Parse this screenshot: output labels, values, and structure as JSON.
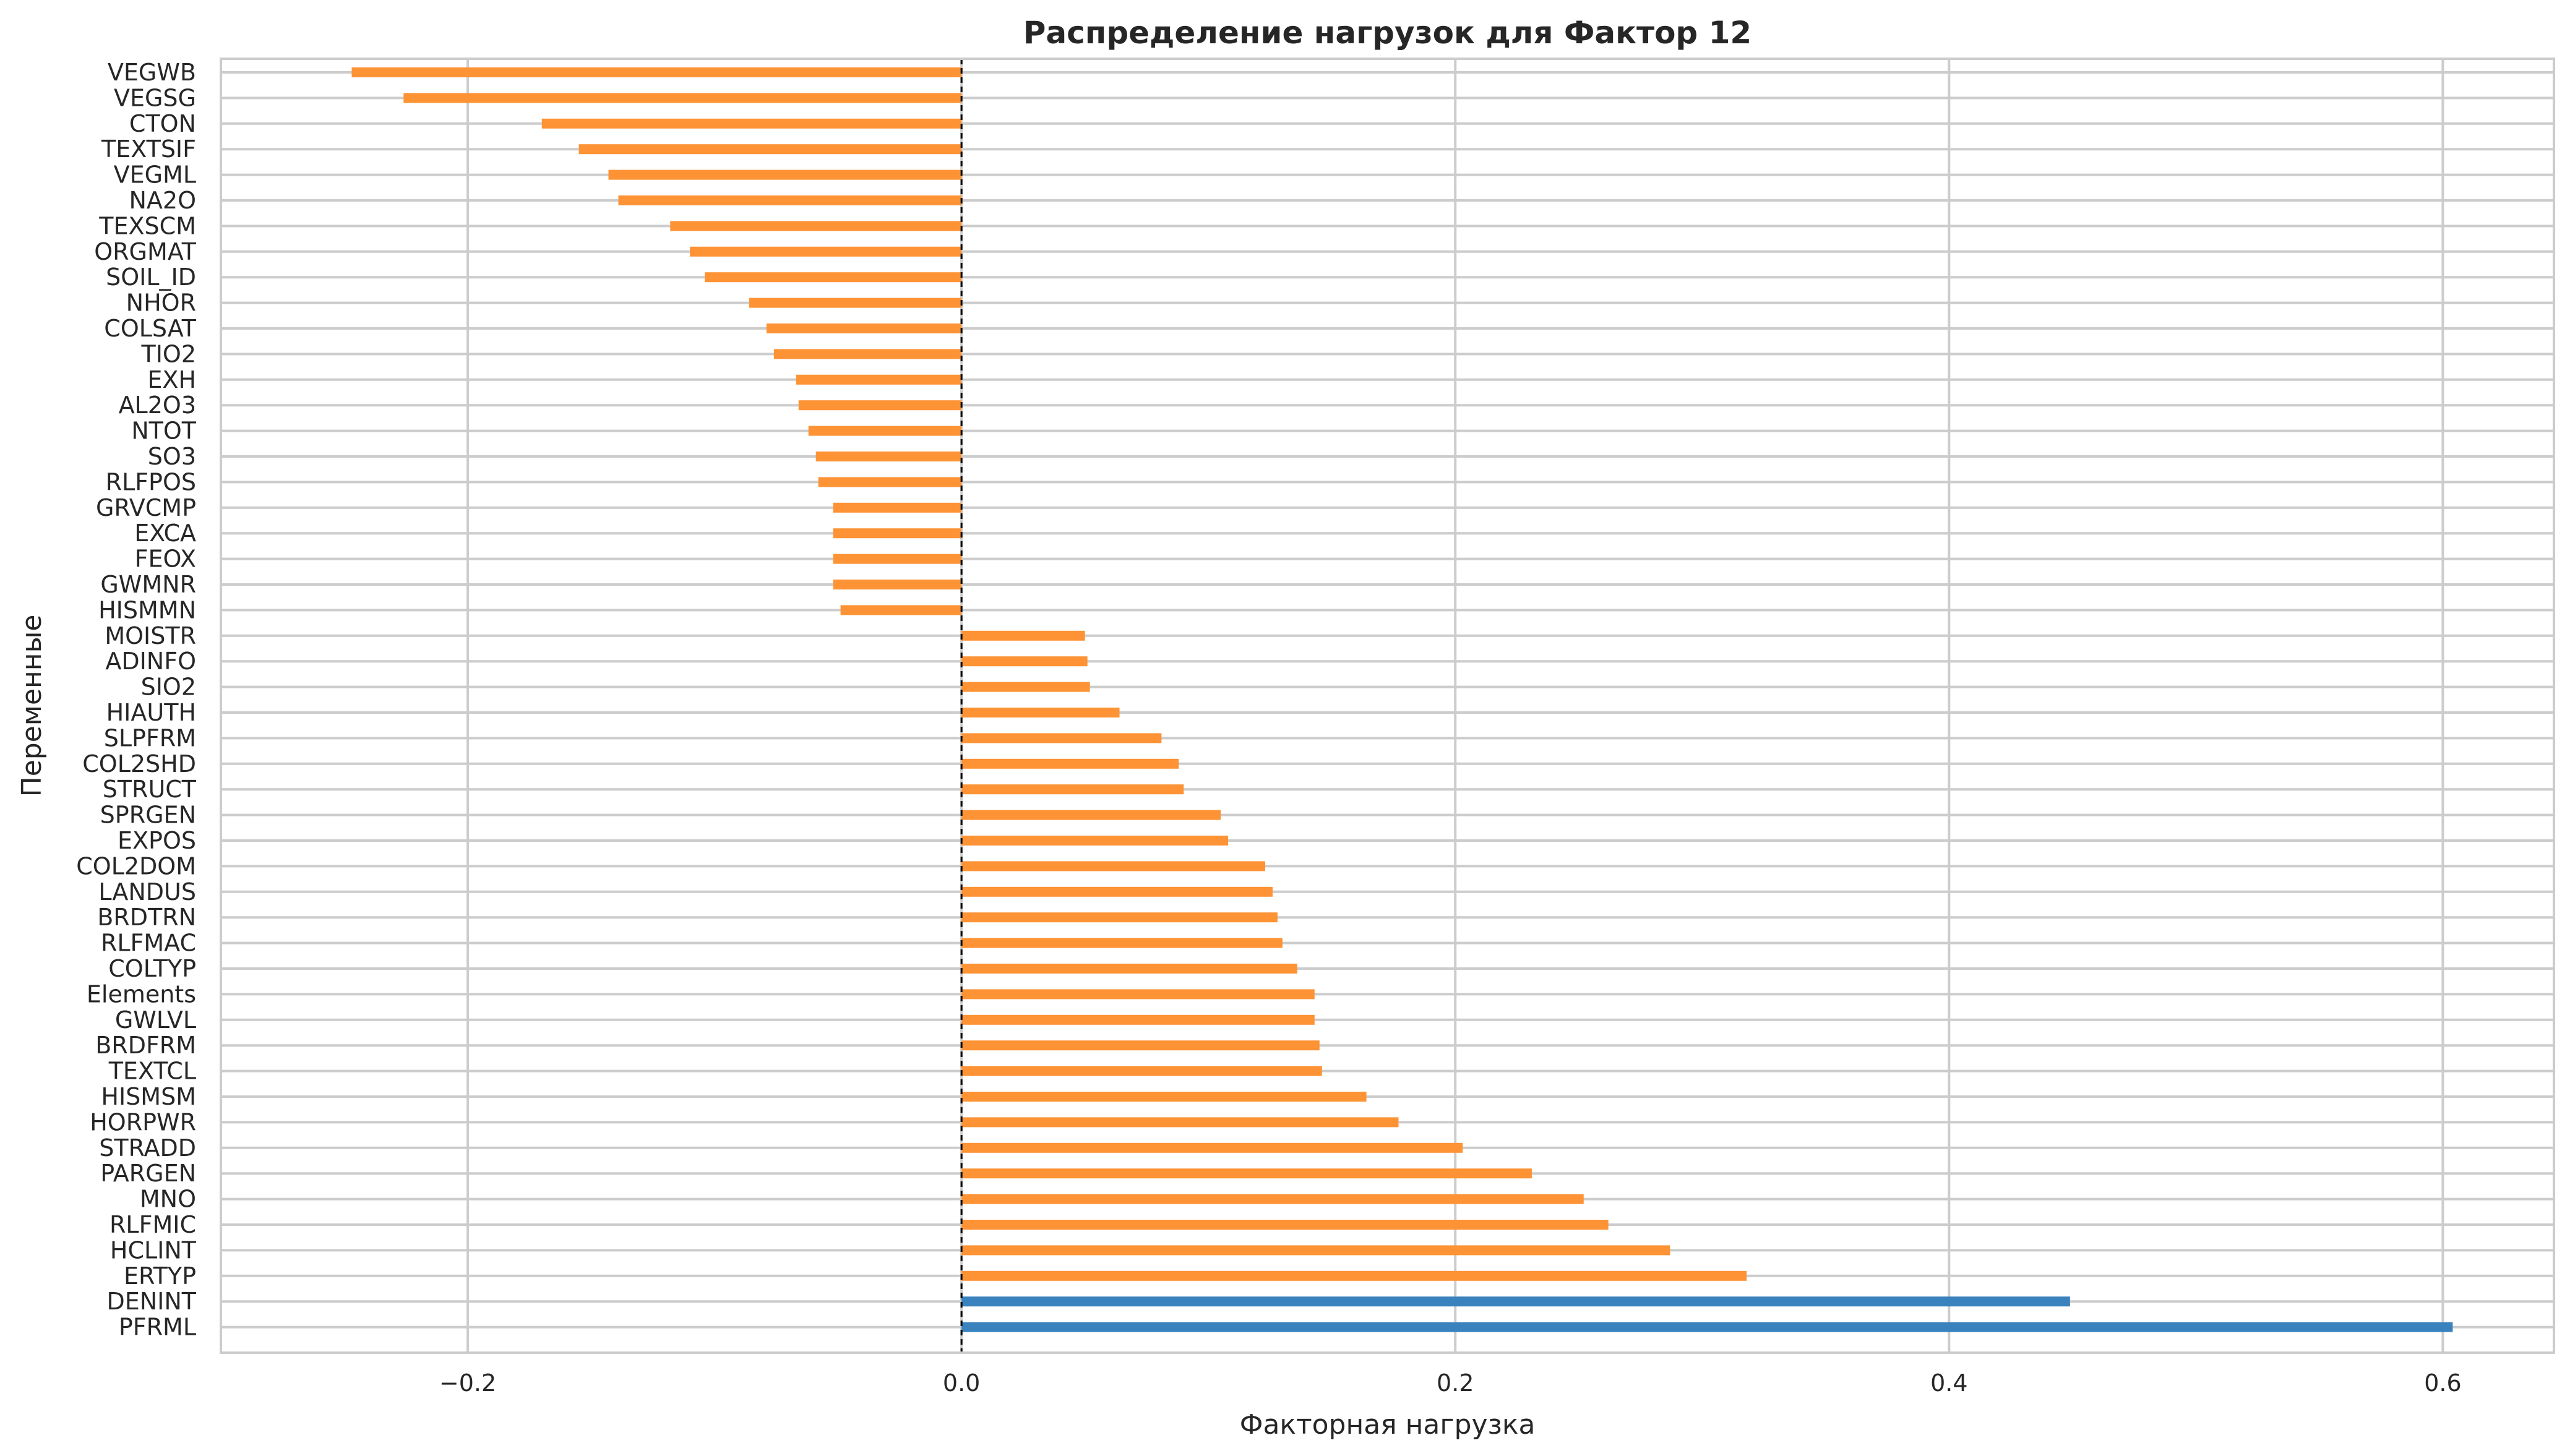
{
  "chart_data": {
    "type": "bar",
    "orientation": "horizontal",
    "title": "Распределение нагрузок для Фактор 12",
    "xlabel": "Факторная нагрузка",
    "ylabel": "Переменные",
    "xlim": [
      -0.3,
      0.645
    ],
    "xticks": [
      -0.2,
      0.0,
      0.2,
      0.4,
      0.6
    ],
    "xtick_labels": [
      "−0.2",
      "0.0",
      "0.2",
      "0.4",
      "0.6"
    ],
    "grid": true,
    "reference_line": 0.0,
    "colors": {
      "default": "#fd9335",
      "highlight": "#3a82bd"
    },
    "categories": [
      "VEGWB",
      "VEGSG",
      "CTON",
      "TEXTSIF",
      "VEGML",
      "NA2O",
      "TEXSCM",
      "ORGMAT",
      "SOIL_ID",
      "NHOR",
      "COLSAT",
      "TIO2",
      "EXH",
      "AL2O3",
      "NTOT",
      "SO3",
      "RLFPOS",
      "GRVCMP",
      "EXCA",
      "FEOX",
      "GWMNR",
      "HISMMN",
      "MOISTR",
      "ADINFO",
      "SIO2",
      "HIAUTH",
      "SLPFRM",
      "COL2SHD",
      "STRUCT",
      "SPRGEN",
      "EXPOS",
      "COL2DOM",
      "LANDUS",
      "BRDTRN",
      "RLFMAC",
      "COLTYP",
      "Elements",
      "GWLVL",
      "BRDFRM",
      "TEXTCL",
      "HISMSM",
      "HORPWR",
      "STRADD",
      "PARGEN",
      "MNO",
      "RLFMIC",
      "HCLINT",
      "ERTYP",
      "DENINT",
      "PFRML"
    ],
    "values": [
      -0.247,
      -0.226,
      -0.17,
      -0.155,
      -0.143,
      -0.139,
      -0.118,
      -0.11,
      -0.104,
      -0.086,
      -0.079,
      -0.076,
      -0.067,
      -0.066,
      -0.062,
      -0.059,
      -0.058,
      -0.052,
      -0.052,
      -0.052,
      -0.052,
      -0.049,
      0.05,
      0.051,
      0.052,
      0.064,
      0.081,
      0.088,
      0.09,
      0.105,
      0.108,
      0.123,
      0.126,
      0.128,
      0.13,
      0.136,
      0.143,
      0.143,
      0.145,
      0.146,
      0.164,
      0.177,
      0.203,
      0.231,
      0.252,
      0.262,
      0.287,
      0.318,
      0.449,
      0.604
    ],
    "highlight_categories": [
      "DENINT",
      "PFRML"
    ]
  }
}
